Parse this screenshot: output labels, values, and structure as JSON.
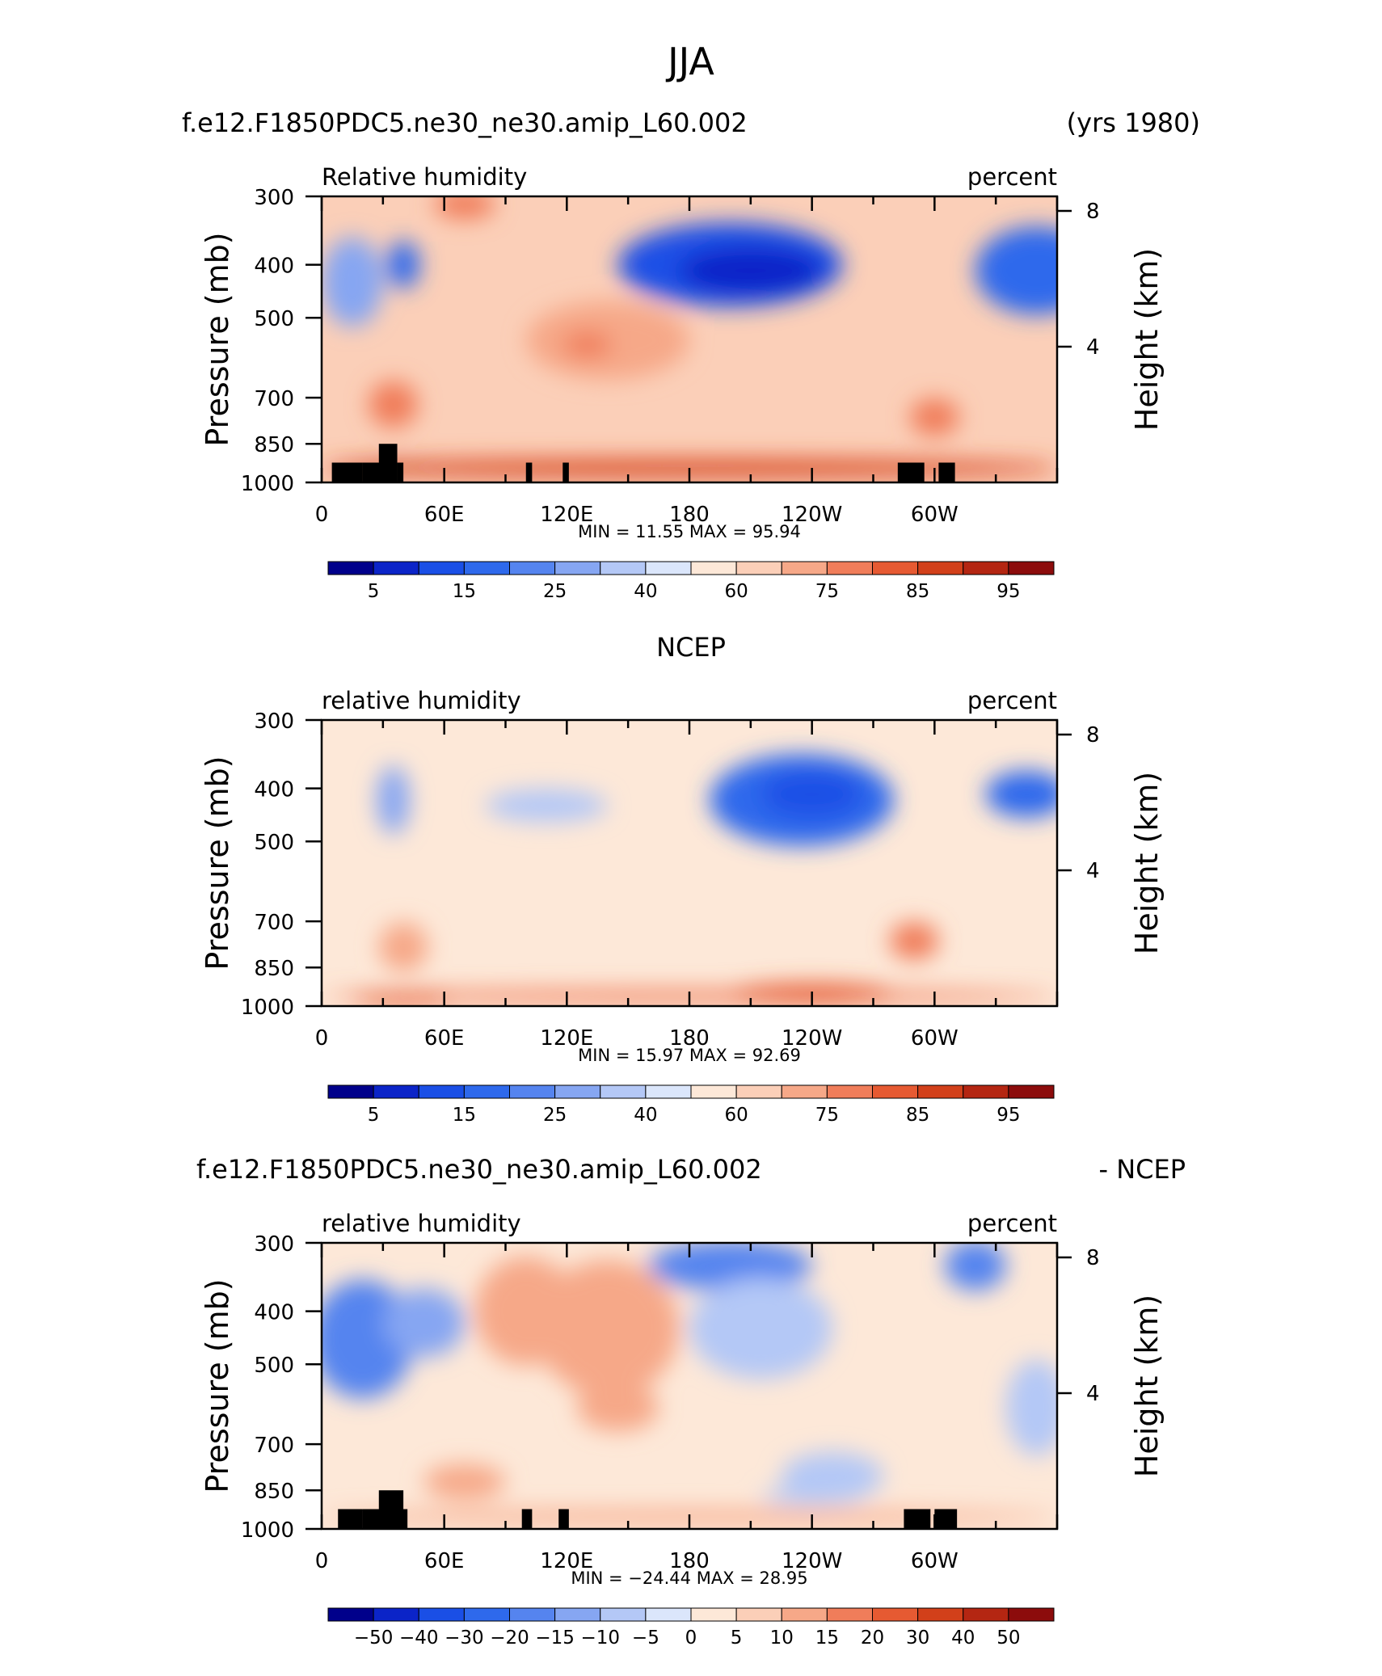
{
  "figure": {
    "title": "JJA",
    "case_name": "f.e12.F1850PDC5.ne30_ne30.amip_L60.002",
    "years": "(yrs 1980)",
    "obs_name": "NCEP",
    "diff_suffix": "- NCEP"
  },
  "colors": {
    "plain": [
      "#00008b",
      "#0b24c8",
      "#1a4fe6",
      "#2e69ec",
      "#5584ef",
      "#86a6f2",
      "#b4c8f6",
      "#dbe6fb",
      "#fde8d8",
      "#fbcfb8",
      "#f6a888",
      "#f07d5a",
      "#e65a32",
      "#d2401a",
      "#b42612",
      "#8c0c0c"
    ],
    "diff": [
      "#00008b",
      "#0b24c8",
      "#1a4fe6",
      "#2e69ec",
      "#5584ef",
      "#86a6f2",
      "#b4c8f6",
      "#dbe6fb",
      "#fde8d8",
      "#fbcfb8",
      "#f6a888",
      "#f07d5a",
      "#e65a32",
      "#d2401a",
      "#b42612",
      "#8c0c0c"
    ],
    "land": "#000000"
  },
  "chart_data": [
    {
      "type": "heatmap",
      "panel_title": "",
      "left_label": "Relative humidity",
      "right_label": "percent",
      "ylabel": "Pressure (mb)",
      "ylabel_right": "Height (km)",
      "x_ticklabels": [
        "0",
        "60E",
        "120E",
        "180",
        "120W",
        "60W"
      ],
      "x_ticks_deg": [
        0,
        60,
        120,
        180,
        240,
        300
      ],
      "xlim_deg": [
        0,
        360
      ],
      "y_ticklabels": [
        "300",
        "400",
        "500",
        "700",
        "850",
        "1000"
      ],
      "y_ticks_mb": [
        300,
        400,
        500,
        700,
        850,
        1000
      ],
      "ylim_mb": [
        300,
        1000
      ],
      "right_ticklabels": [
        "8",
        "4"
      ],
      "right_ticks_km": [
        8,
        4
      ],
      "stats_text": "MIN =   11.55   MAX =   95.94",
      "min": 11.55,
      "max": 95.94,
      "colorbar_labels": [
        "5",
        "15",
        "25",
        "40",
        "60",
        "75",
        "85",
        "95"
      ],
      "field": "model"
    },
    {
      "type": "heatmap",
      "panel_title": "NCEP",
      "left_label": "relative humidity",
      "right_label": "percent",
      "ylabel": "Pressure (mb)",
      "ylabel_right": "Height (km)",
      "x_ticklabels": [
        "0",
        "60E",
        "120E",
        "180",
        "120W",
        "60W"
      ],
      "x_ticks_deg": [
        0,
        60,
        120,
        180,
        240,
        300
      ],
      "xlim_deg": [
        0,
        360
      ],
      "y_ticklabels": [
        "300",
        "400",
        "500",
        "700",
        "850",
        "1000"
      ],
      "y_ticks_mb": [
        300,
        400,
        500,
        700,
        850,
        1000
      ],
      "ylim_mb": [
        300,
        1000
      ],
      "right_ticklabels": [
        "8",
        "4"
      ],
      "right_ticks_km": [
        8,
        4
      ],
      "stats_text": "MIN =   15.97   MAX =   92.69",
      "min": 15.97,
      "max": 92.69,
      "colorbar_labels": [
        "5",
        "15",
        "25",
        "40",
        "60",
        "75",
        "85",
        "95"
      ],
      "field": "obs"
    },
    {
      "type": "heatmap",
      "panel_title": "",
      "left_label": "relative humidity",
      "right_label": "percent",
      "ylabel": "Pressure (mb)",
      "ylabel_right": "Height (km)",
      "x_ticklabels": [
        "0",
        "60E",
        "120E",
        "180",
        "120W",
        "60W"
      ],
      "x_ticks_deg": [
        0,
        60,
        120,
        180,
        240,
        300
      ],
      "xlim_deg": [
        0,
        360
      ],
      "y_ticklabels": [
        "300",
        "400",
        "500",
        "700",
        "850",
        "1000"
      ],
      "y_ticks_mb": [
        300,
        400,
        500,
        700,
        850,
        1000
      ],
      "ylim_mb": [
        300,
        1000
      ],
      "right_ticklabels": [
        "8",
        "4"
      ],
      "right_ticks_km": [
        8,
        4
      ],
      "stats_text": "MIN =  −24.44   MAX =   28.95",
      "min": -24.44,
      "max": 28.95,
      "colorbar_labels": [
        "−50",
        "−40",
        "−30",
        "−20",
        "−15",
        "−10",
        "−5",
        "0",
        "5",
        "10",
        "15",
        "20",
        "30",
        "40",
        "50"
      ],
      "field": "diff"
    }
  ]
}
